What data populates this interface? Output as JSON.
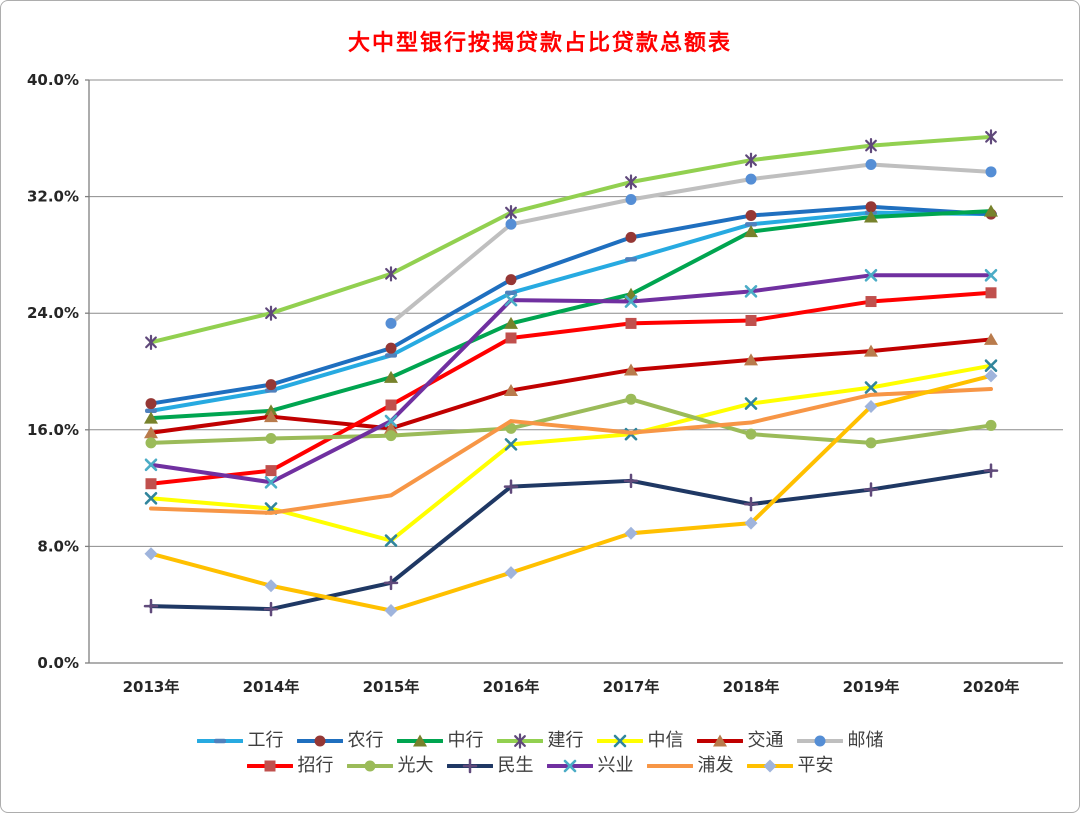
{
  "chart_data": {
    "type": "line",
    "title": "大中型银行按揭贷款占比贷款总额表",
    "title_color": "#ff0000",
    "categories": [
      "2013年",
      "2014年",
      "2015年",
      "2016年",
      "2017年",
      "2018年",
      "2019年",
      "2020年"
    ],
    "y_axis": {
      "ticks": [
        "0.0%",
        "8.0%",
        "16.0%",
        "24.0%",
        "32.0%",
        "40.0%"
      ],
      "min": 0,
      "max": 40,
      "step": 8,
      "unit": "%"
    },
    "grid": true,
    "grid_color": "#8c8c8c",
    "axis_color": "#7f7f7f",
    "legend_position": "bottom",
    "legend_rows": [
      7,
      6
    ],
    "series": [
      {
        "name": "工行",
        "color": "#27aae1",
        "marker": "dash",
        "marker_color": "#4f81bd",
        "values": [
          17.3,
          18.7,
          21.1,
          25.4,
          27.7,
          30.1,
          30.9,
          30.8
        ]
      },
      {
        "name": "农行",
        "color": "#1f6fbf",
        "marker": "circle",
        "marker_color": "#953735",
        "values": [
          17.8,
          19.1,
          21.6,
          26.3,
          29.2,
          30.7,
          31.3,
          30.8
        ]
      },
      {
        "name": "中行",
        "color": "#00a550",
        "marker": "triangle",
        "marker_color": "#77822c",
        "values": [
          16.8,
          17.3,
          19.6,
          23.3,
          25.3,
          29.6,
          30.6,
          31.0
        ]
      },
      {
        "name": "建行",
        "color": "#92d050",
        "marker": "asterisk",
        "marker_color": "#60497b",
        "values": [
          22.0,
          24.0,
          26.7,
          30.9,
          33.0,
          34.5,
          35.5,
          36.1
        ]
      },
      {
        "name": "中信",
        "color": "#ffff00",
        "marker": "x",
        "marker_color": "#31859c",
        "values": [
          11.3,
          10.6,
          8.4,
          15.0,
          15.7,
          17.8,
          18.9,
          20.4
        ]
      },
      {
        "name": "交通",
        "color": "#c00000",
        "marker": "triangle",
        "marker_color": "#b97b4c",
        "values": [
          15.8,
          16.9,
          16.1,
          18.7,
          20.1,
          20.8,
          21.4,
          22.2
        ]
      },
      {
        "name": "邮储",
        "color": "#bfbfbf",
        "marker": "circle",
        "marker_color": "#558ed5",
        "values": [
          null,
          null,
          23.3,
          30.1,
          31.8,
          33.2,
          34.2,
          33.7
        ]
      },
      {
        "name": "招行",
        "color": "#ff0000",
        "marker": "square",
        "marker_color": "#c0504d",
        "values": [
          12.3,
          13.2,
          17.7,
          22.3,
          23.3,
          23.5,
          24.8,
          25.4
        ]
      },
      {
        "name": "光大",
        "color": "#9bbb59",
        "marker": "circle",
        "marker_color": "#9bbb59",
        "values": [
          15.1,
          15.4,
          15.6,
          16.1,
          18.1,
          15.7,
          15.1,
          16.3
        ]
      },
      {
        "name": "民生",
        "color": "#1f3864",
        "marker": "plus",
        "marker_color": "#604a7b",
        "values": [
          3.9,
          3.7,
          5.5,
          12.1,
          12.5,
          10.9,
          11.9,
          13.2
        ]
      },
      {
        "name": "兴业",
        "color": "#7030a0",
        "marker": "x",
        "marker_color": "#4bacc6",
        "values": [
          13.6,
          12.4,
          16.6,
          24.9,
          24.8,
          25.5,
          26.6,
          26.6
        ]
      },
      {
        "name": "浦发",
        "color": "#f79646",
        "marker": "none",
        "marker_color": "#f79646",
        "values": [
          10.6,
          10.3,
          11.5,
          16.6,
          15.8,
          16.5,
          18.4,
          18.8
        ]
      },
      {
        "name": "平安",
        "color": "#ffc000",
        "marker": "diamond",
        "marker_color": "#9fb4dc",
        "values": [
          7.5,
          5.3,
          3.6,
          6.2,
          8.9,
          9.6,
          17.6,
          19.7
        ]
      }
    ]
  }
}
